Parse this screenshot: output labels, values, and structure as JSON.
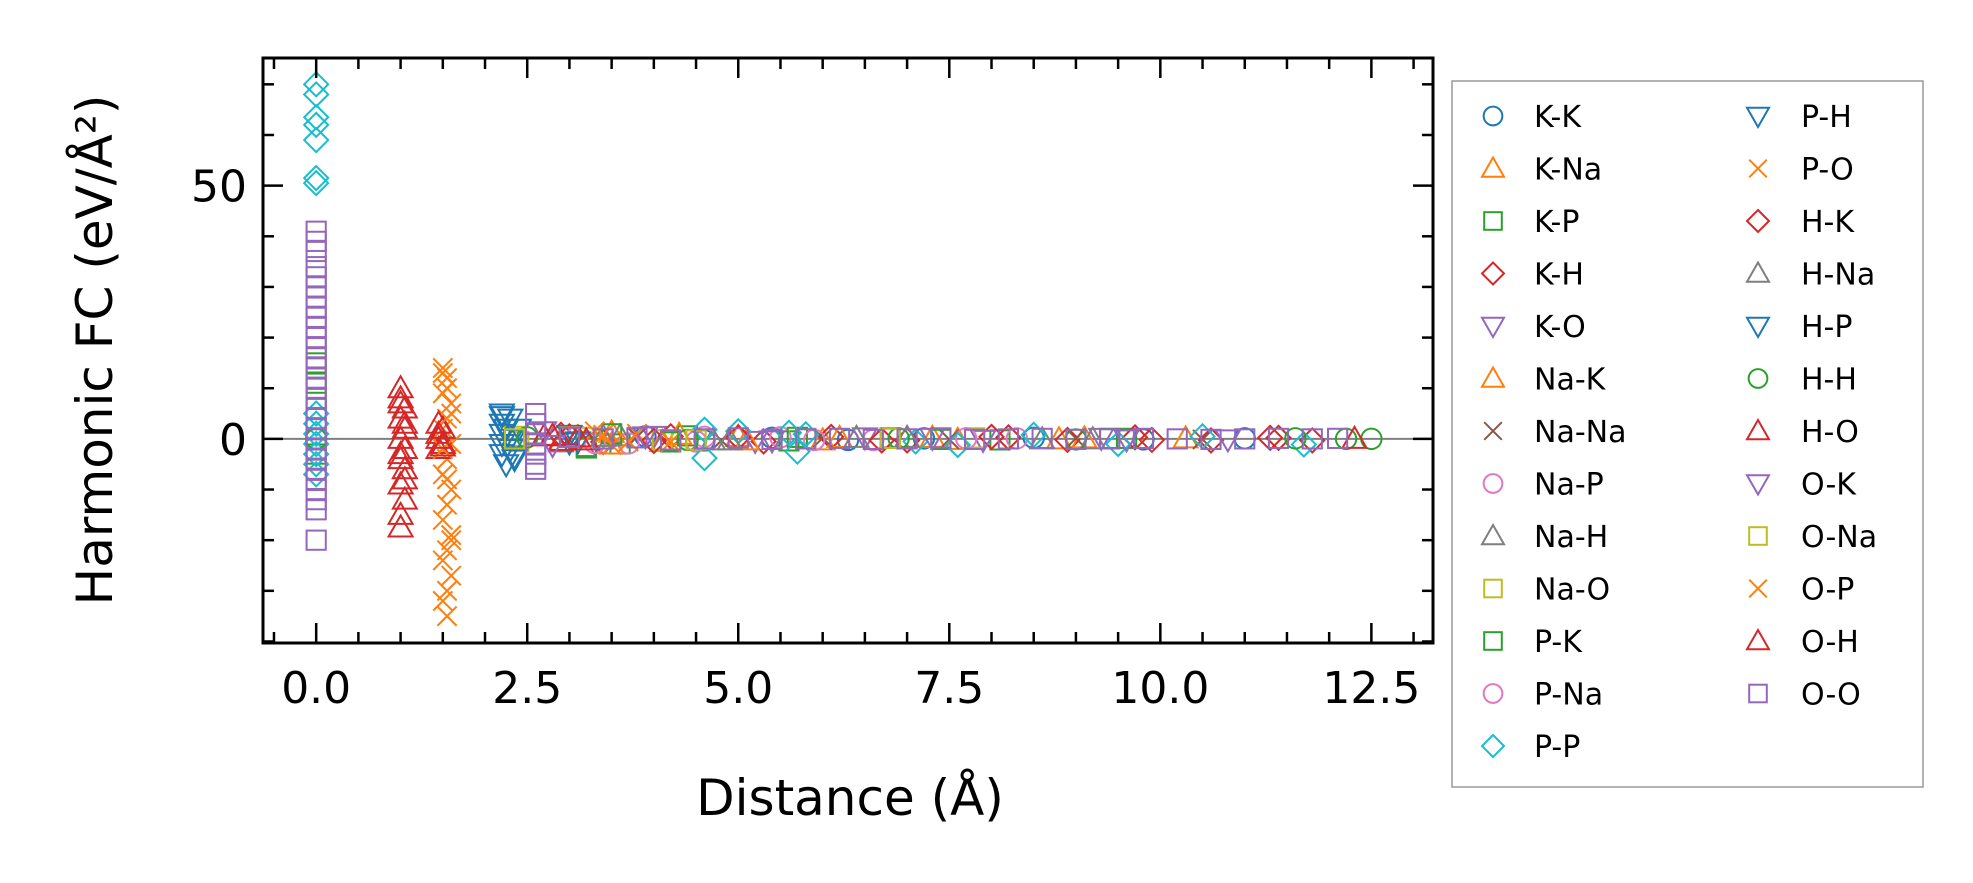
{
  "chart_data": {
    "type": "scatter",
    "title": "",
    "xlabel": "Distance (Å)",
    "ylabel": "Harmonic FC (eV/Å²)",
    "xlim": [
      -0.63,
      13.23
    ],
    "ylim": [
      -40.3,
      75.2
    ],
    "xticks": [
      0.0,
      2.5,
      5.0,
      7.5,
      10.0,
      12.5
    ],
    "xtick_labels": [
      "0.0",
      "2.5",
      "5.0",
      "7.5",
      "10.0",
      "12.5"
    ],
    "yticks": [
      0,
      50
    ],
    "ytick_labels": [
      "0",
      "50"
    ],
    "x_minor_step": 0.5,
    "y_minor_step": 10,
    "zero_line": true,
    "grid": false,
    "legend_position": "outside-right",
    "series": [
      {
        "name": "K-K",
        "marker": "circle",
        "color": "#1f77b4",
        "points": [
          [
            3.9,
            0.5
          ],
          [
            4.6,
            -0.3
          ],
          [
            5.4,
            0.2
          ],
          [
            6.3,
            -0.2
          ],
          [
            7.2,
            0.1
          ],
          [
            8.5,
            0.2
          ],
          [
            9.8,
            -0.1
          ],
          [
            11.0,
            0.1
          ]
        ]
      },
      {
        "name": "K-Na",
        "marker": "triangle-up",
        "color": "#ff7f0e",
        "points": [
          [
            3.5,
            1.2
          ],
          [
            4.1,
            -0.6
          ],
          [
            5.0,
            0.4
          ],
          [
            6.0,
            -0.3
          ],
          [
            7.3,
            0.2
          ],
          [
            8.8,
            -0.1
          ],
          [
            10.3,
            0.1
          ]
        ]
      },
      {
        "name": "K-P",
        "marker": "square",
        "color": "#2ca02c",
        "points": [
          [
            0.0,
            15
          ],
          [
            0.0,
            11
          ],
          [
            0.0,
            8
          ],
          [
            0.0,
            -3
          ],
          [
            3.2,
            -1.5
          ],
          [
            3.6,
            -1.0
          ],
          [
            4.4,
            0.6
          ],
          [
            5.6,
            -0.4
          ],
          [
            6.8,
            0.2
          ],
          [
            8.1,
            -0.2
          ],
          [
            9.6,
            0.1
          ]
        ]
      },
      {
        "name": "K-H",
        "marker": "diamond",
        "color": "#d62728",
        "points": [
          [
            2.9,
            0.8
          ],
          [
            3.4,
            -0.6
          ],
          [
            4.2,
            0.5
          ],
          [
            5.3,
            -0.5
          ],
          [
            6.1,
            0.4
          ],
          [
            7.0,
            -0.3
          ],
          [
            8.0,
            0.4
          ],
          [
            8.9,
            -0.2
          ],
          [
            9.7,
            0.3
          ],
          [
            10.6,
            -0.3
          ],
          [
            11.3,
            0.2
          ],
          [
            11.8,
            -0.3
          ]
        ]
      },
      {
        "name": "K-O",
        "marker": "triangle-down",
        "color": "#9467bd",
        "points": [
          [
            2.7,
            1.5
          ],
          [
            3.3,
            -0.8
          ],
          [
            4.0,
            0.6
          ],
          [
            5.2,
            -0.4
          ],
          [
            6.5,
            0.3
          ],
          [
            7.9,
            -0.2
          ],
          [
            9.3,
            0.2
          ],
          [
            10.8,
            -0.1
          ]
        ]
      },
      {
        "name": "Na-K",
        "marker": "triangle-up",
        "color": "#ff7f0e",
        "points": [
          [
            3.5,
            -1.1
          ],
          [
            4.3,
            0.8
          ],
          [
            5.1,
            -0.3
          ],
          [
            6.2,
            0.2
          ],
          [
            7.6,
            -0.2
          ],
          [
            9.1,
            0.1
          ]
        ]
      },
      {
        "name": "Na-Na",
        "marker": "x",
        "color": "#8c564b",
        "points": [
          [
            3.8,
            0.4
          ],
          [
            4.8,
            -0.3
          ],
          [
            6.0,
            0.2
          ],
          [
            7.5,
            -0.1
          ],
          [
            9.0,
            0.1
          ],
          [
            10.5,
            -0.1
          ]
        ]
      },
      {
        "name": "Na-P",
        "marker": "circle",
        "color": "#e377c2",
        "points": [
          [
            3.1,
            0.6
          ],
          [
            3.7,
            -0.9
          ],
          [
            4.5,
            -0.5
          ],
          [
            5.5,
            0.3
          ],
          [
            6.6,
            -0.2
          ],
          [
            8.3,
            0.1
          ]
        ]
      },
      {
        "name": "Na-H",
        "marker": "triangle-up",
        "color": "#7f7f7f",
        "points": [
          [
            2.9,
            -0.7
          ],
          [
            3.6,
            0.5
          ],
          [
            4.7,
            -0.3
          ],
          [
            6.4,
            0.2
          ],
          [
            8.6,
            -0.1
          ]
        ]
      },
      {
        "name": "Na-O",
        "marker": "square",
        "color": "#bcbd22",
        "points": [
          [
            2.35,
            0.5
          ],
          [
            2.4,
            -0.5
          ],
          [
            3.2,
            0.3
          ],
          [
            4.1,
            -0.2
          ],
          [
            5.8,
            0.1
          ],
          [
            7.8,
            0.2
          ]
        ]
      },
      {
        "name": "P-K",
        "marker": "square",
        "color": "#2ca02c",
        "points": [
          [
            3.2,
            -1.8
          ],
          [
            3.5,
            1.0
          ],
          [
            4.2,
            -0.6
          ],
          [
            5.7,
            0.3
          ],
          [
            7.4,
            -0.1
          ],
          [
            9.4,
            0.1
          ]
        ]
      },
      {
        "name": "P-Na",
        "marker": "circle",
        "color": "#e377c2",
        "points": [
          [
            3.3,
            -0.8
          ],
          [
            4.6,
            0.4
          ],
          [
            5.9,
            -0.2
          ],
          [
            7.7,
            0.1
          ]
        ]
      },
      {
        "name": "P-P",
        "marker": "diamond",
        "color": "#17becf",
        "points": [
          [
            0.0,
            70
          ],
          [
            0.0,
            68
          ],
          [
            0.0,
            63.5
          ],
          [
            0.0,
            62
          ],
          [
            0.0,
            59
          ],
          [
            0.0,
            51.5
          ],
          [
            0.0,
            50.5
          ],
          [
            0.0,
            5
          ],
          [
            0.0,
            3
          ],
          [
            0.0,
            1
          ],
          [
            0.0,
            -1
          ],
          [
            0.0,
            -3
          ],
          [
            0.0,
            -5
          ],
          [
            0.0,
            -7
          ],
          [
            4.6,
            -3.8
          ],
          [
            4.6,
            1.8
          ],
          [
            5.0,
            1.5
          ],
          [
            5.6,
            1.2
          ],
          [
            5.7,
            -2.5
          ],
          [
            5.8,
            0.9
          ],
          [
            7.1,
            -0.5
          ],
          [
            7.6,
            -1.2
          ],
          [
            8.5,
            0.8
          ],
          [
            9.5,
            -1.0
          ],
          [
            10.5,
            0.5
          ],
          [
            11.7,
            -1.1
          ]
        ]
      },
      {
        "name": "P-H",
        "marker": "triangle-down",
        "color": "#1f77b4",
        "points": [
          [
            2.2,
            5
          ],
          [
            2.2,
            3
          ],
          [
            2.2,
            1
          ],
          [
            2.2,
            -1
          ],
          [
            2.2,
            -3
          ],
          [
            2.25,
            -5
          ],
          [
            2.3,
            4
          ],
          [
            2.3,
            0
          ],
          [
            2.35,
            -4
          ],
          [
            2.4,
            2
          ],
          [
            3.0,
            0.8
          ],
          [
            3.1,
            -0.5
          ]
        ]
      },
      {
        "name": "P-O",
        "marker": "x",
        "color": "#ff7f0e",
        "points": [
          [
            1.5,
            14
          ],
          [
            1.55,
            12
          ],
          [
            1.5,
            9
          ],
          [
            1.6,
            7
          ],
          [
            1.55,
            4
          ],
          [
            1.5,
            2
          ],
          [
            1.6,
            -1
          ],
          [
            1.55,
            -4
          ],
          [
            1.5,
            -7
          ],
          [
            1.6,
            -10
          ],
          [
            1.55,
            -13
          ],
          [
            1.5,
            -16
          ],
          [
            1.6,
            -19
          ],
          [
            1.55,
            -22
          ],
          [
            1.5,
            -24
          ],
          [
            1.6,
            -27
          ],
          [
            1.5,
            -32
          ],
          [
            1.55,
            -35
          ],
          [
            3.3,
            1.5
          ],
          [
            3.5,
            -1.2
          ],
          [
            3.8,
            1.0
          ],
          [
            4.2,
            -0.6
          ]
        ]
      },
      {
        "name": "H-K",
        "marker": "diamond",
        "color": "#d62728",
        "points": [
          [
            3.0,
            0.5
          ],
          [
            4.0,
            -0.4
          ],
          [
            5.0,
            0.3
          ],
          [
            6.7,
            -0.3
          ],
          [
            8.2,
            0.3
          ],
          [
            9.9,
            -0.2
          ],
          [
            11.4,
            0.2
          ]
        ]
      },
      {
        "name": "H-Na",
        "marker": "triangle-up",
        "color": "#7f7f7f",
        "points": [
          [
            3.4,
            0.4
          ],
          [
            4.9,
            -0.3
          ],
          [
            7.0,
            0.2
          ],
          [
            9.2,
            -0.1
          ]
        ]
      },
      {
        "name": "H-P",
        "marker": "triangle-down",
        "color": "#1f77b4",
        "points": [
          [
            2.2,
            4.5
          ],
          [
            2.25,
            2
          ],
          [
            2.3,
            -2
          ],
          [
            2.35,
            -3.5
          ],
          [
            3.0,
            -0.7
          ]
        ]
      },
      {
        "name": "H-H",
        "marker": "circle",
        "color": "#2ca02c",
        "points": [
          [
            0.0,
            0
          ],
          [
            2.5,
            0.3
          ],
          [
            4.4,
            -0.2
          ],
          [
            6.9,
            0.1
          ],
          [
            9.0,
            -0.1
          ],
          [
            11.6,
            0.1
          ],
          [
            12.2,
            0
          ],
          [
            12.5,
            0
          ]
        ]
      },
      {
        "name": "H-O",
        "marker": "triangle-up",
        "color": "#d62728",
        "points": [
          [
            1.0,
            10
          ],
          [
            1.0,
            8
          ],
          [
            1.05,
            6
          ],
          [
            1.0,
            4
          ],
          [
            1.05,
            2
          ],
          [
            1.0,
            0
          ],
          [
            1.05,
            -2
          ],
          [
            1.0,
            -4
          ],
          [
            1.05,
            -6
          ],
          [
            1.0,
            -9
          ],
          [
            1.05,
            -12
          ],
          [
            1.0,
            -15
          ],
          [
            1.0,
            -17.5
          ],
          [
            1.45,
            3
          ],
          [
            1.45,
            1
          ],
          [
            1.5,
            -1
          ],
          [
            1.45,
            -2
          ],
          [
            1.5,
            2
          ],
          [
            2.7,
            0.5
          ],
          [
            2.9,
            -0.4
          ],
          [
            3.1,
            0.3
          ],
          [
            12.3,
            0
          ]
        ]
      },
      {
        "name": "O-K",
        "marker": "triangle-down",
        "color": "#9467bd",
        "points": [
          [
            2.8,
            -1.2
          ],
          [
            3.9,
            0.5
          ],
          [
            5.4,
            -0.3
          ],
          [
            7.3,
            0.2
          ],
          [
            9.6,
            -0.1
          ]
        ]
      },
      {
        "name": "O-Na",
        "marker": "square",
        "color": "#bcbd22",
        "points": [
          [
            2.35,
            0
          ],
          [
            3.0,
            0.4
          ],
          [
            4.5,
            -0.2
          ],
          [
            6.8,
            0.1
          ]
        ]
      },
      {
        "name": "O-P",
        "marker": "x",
        "color": "#ff7f0e",
        "points": [
          [
            1.5,
            13
          ],
          [
            1.55,
            10
          ],
          [
            1.6,
            5
          ],
          [
            1.5,
            -2
          ],
          [
            1.55,
            -8
          ],
          [
            1.6,
            -20
          ],
          [
            1.55,
            -30
          ],
          [
            3.4,
            0.8
          ],
          [
            3.7,
            -0.5
          ]
        ]
      },
      {
        "name": "O-H",
        "marker": "triangle-up",
        "color": "#d62728",
        "points": [
          [
            1.0,
            7
          ],
          [
            1.05,
            3
          ],
          [
            1.0,
            -3
          ],
          [
            1.05,
            -8
          ],
          [
            1.45,
            0
          ],
          [
            1.5,
            -1.5
          ],
          [
            2.8,
            0.6
          ],
          [
            3.2,
            -0.3
          ]
        ]
      },
      {
        "name": "O-O",
        "marker": "square",
        "color": "#9467bd",
        "points": [
          [
            0.0,
            41
          ],
          [
            0.0,
            39
          ],
          [
            0.0,
            37
          ],
          [
            0.0,
            34
          ],
          [
            0.0,
            32
          ],
          [
            0.0,
            30
          ],
          [
            0.0,
            28
          ],
          [
            0.0,
            26
          ],
          [
            0.0,
            24
          ],
          [
            0.0,
            22
          ],
          [
            0.0,
            20
          ],
          [
            0.0,
            18
          ],
          [
            0.0,
            16
          ],
          [
            0.0,
            14
          ],
          [
            0.0,
            12
          ],
          [
            0.0,
            10
          ],
          [
            0.0,
            8
          ],
          [
            0.0,
            6
          ],
          [
            0.0,
            4
          ],
          [
            0.0,
            2
          ],
          [
            0.0,
            0
          ],
          [
            0.0,
            -2
          ],
          [
            0.0,
            -4
          ],
          [
            0.0,
            -6
          ],
          [
            0.0,
            -8
          ],
          [
            0.0,
            -10
          ],
          [
            0.0,
            -12
          ],
          [
            0.0,
            -14
          ],
          [
            0.0,
            -20
          ],
          [
            2.6,
            5
          ],
          [
            2.6,
            3
          ],
          [
            2.6,
            1
          ],
          [
            2.6,
            -1
          ],
          [
            2.6,
            -3
          ],
          [
            2.6,
            -5
          ],
          [
            2.6,
            -6
          ],
          [
            3.0,
            0.3
          ],
          [
            3.4,
            0
          ],
          [
            3.8,
            0.2
          ],
          [
            4.2,
            -0.2
          ],
          [
            4.6,
            0
          ],
          [
            5.0,
            0.2
          ],
          [
            5.4,
            -0.1
          ],
          [
            5.8,
            0
          ],
          [
            6.2,
            0.1
          ],
          [
            6.6,
            -0.1
          ],
          [
            7.0,
            0
          ],
          [
            7.4,
            0.2
          ],
          [
            7.8,
            -0.1
          ],
          [
            8.2,
            0
          ],
          [
            8.6,
            0.1
          ],
          [
            9.0,
            -0.1
          ],
          [
            9.4,
            0
          ],
          [
            9.8,
            0.1
          ],
          [
            10.2,
            0
          ],
          [
            10.6,
            -0.1
          ],
          [
            11.0,
            0
          ],
          [
            11.4,
            0.1
          ],
          [
            11.8,
            0
          ],
          [
            12.1,
            0.1
          ]
        ]
      }
    ]
  }
}
